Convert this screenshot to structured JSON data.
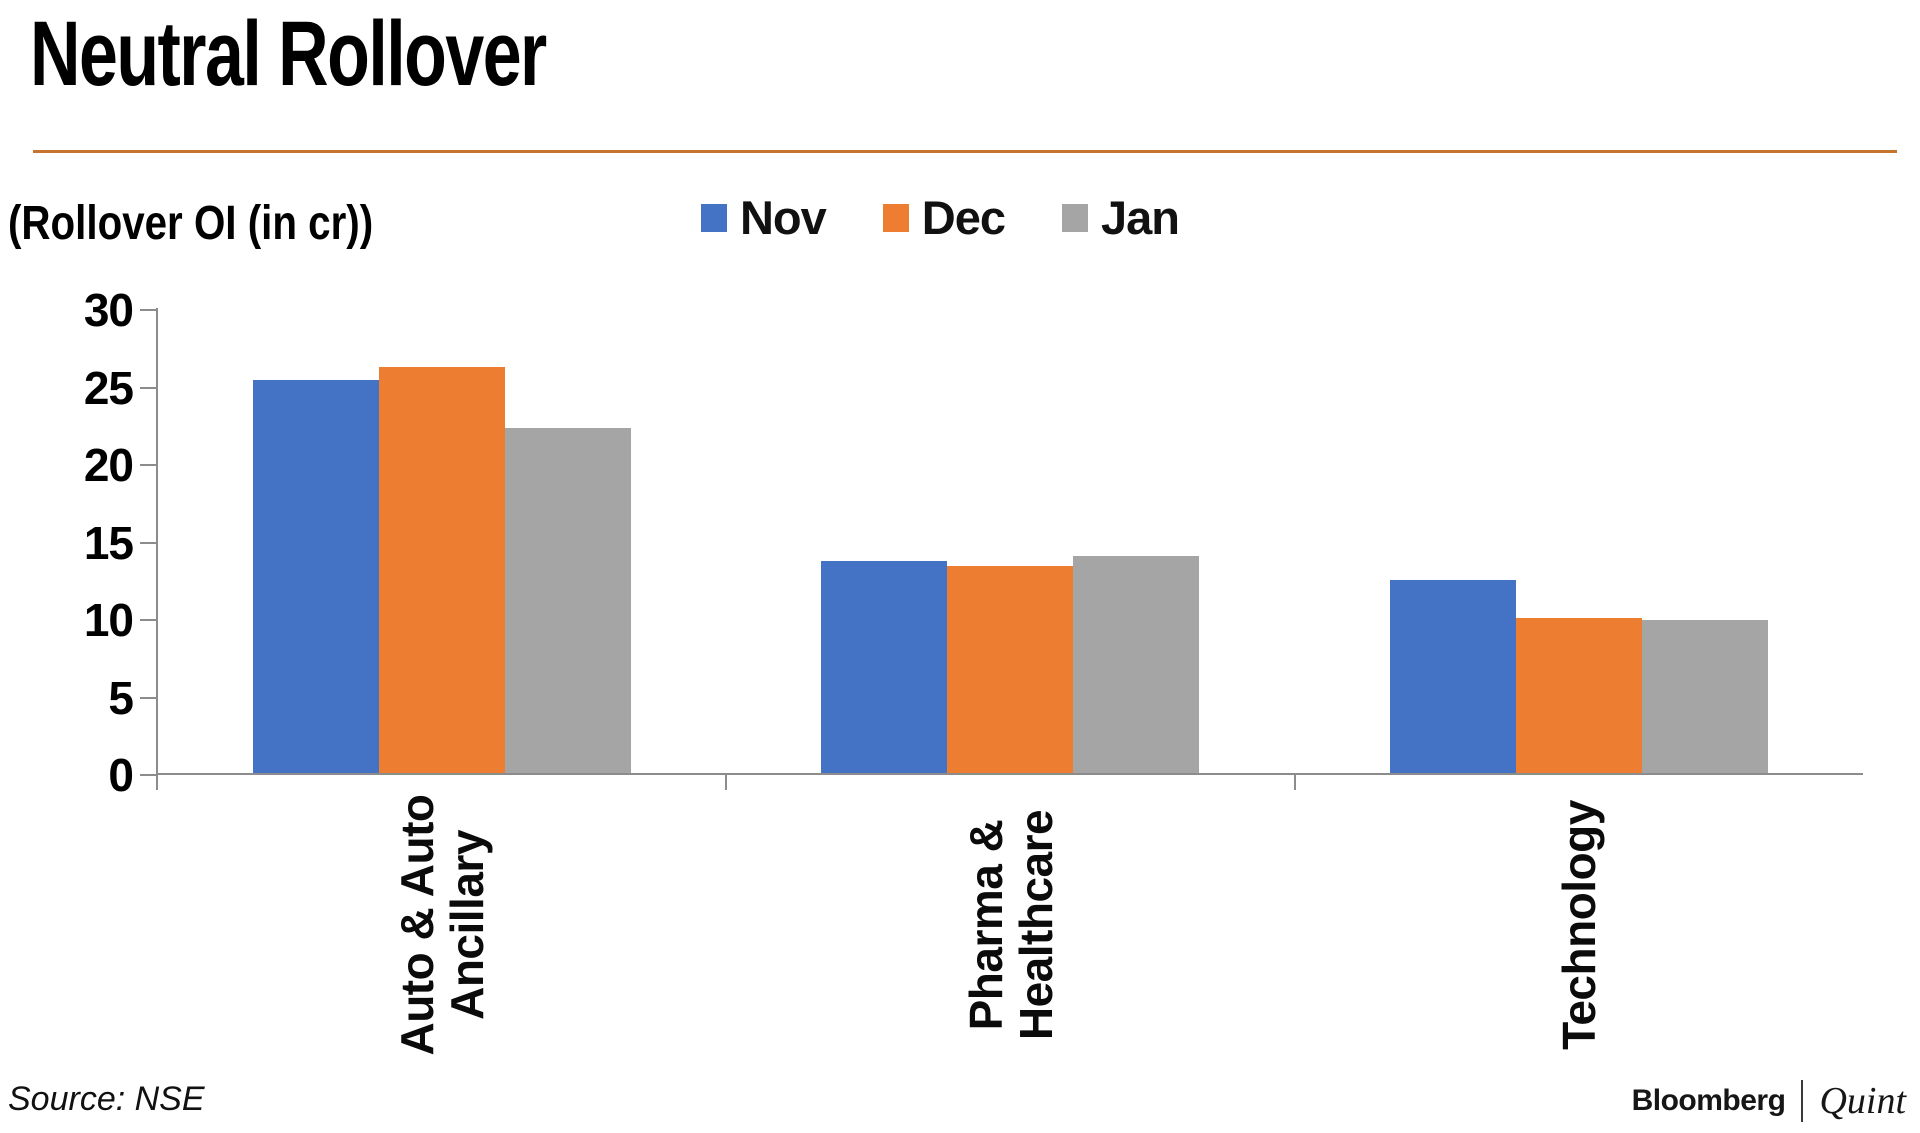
{
  "header": {
    "title": "Neutral Rollover"
  },
  "colors": {
    "rule_orange": "#C4742F",
    "axis_gray": "#8C8C8C",
    "nov_blue": "#4472C4",
    "dec_orange": "#ED7D31",
    "jan_gray": "#A5A5A5",
    "text_black": "#000000"
  },
  "chart_data": {
    "type": "bar",
    "title": "Neutral Rollover",
    "ylabel": "(Rollover OI (in cr))",
    "xlabel": "",
    "categories": [
      "Auto & Auto Ancillary",
      "Pharma & Healthcare",
      "Technology"
    ],
    "category_label_lines": [
      [
        "Auto & Auto",
        "Ancillary"
      ],
      [
        "Pharma &",
        "Healthcare"
      ],
      [
        "Technology"
      ]
    ],
    "series": [
      {
        "name": "Nov",
        "color": "#4472C4",
        "values": [
          25.5,
          13.8,
          12.6
        ]
      },
      {
        "name": "Dec",
        "color": "#ED7D31",
        "values": [
          26.3,
          13.5,
          10.1
        ]
      },
      {
        "name": "Jan",
        "color": "#A5A5A5",
        "values": [
          22.4,
          14.1,
          10.0
        ]
      }
    ],
    "ylim": [
      0,
      30
    ],
    "ytick_step": 5,
    "legend_position": "top",
    "grid": false
  },
  "footer": {
    "source": "Source: NSE",
    "brand_left": "Bloomberg",
    "brand_right": "Quint"
  }
}
